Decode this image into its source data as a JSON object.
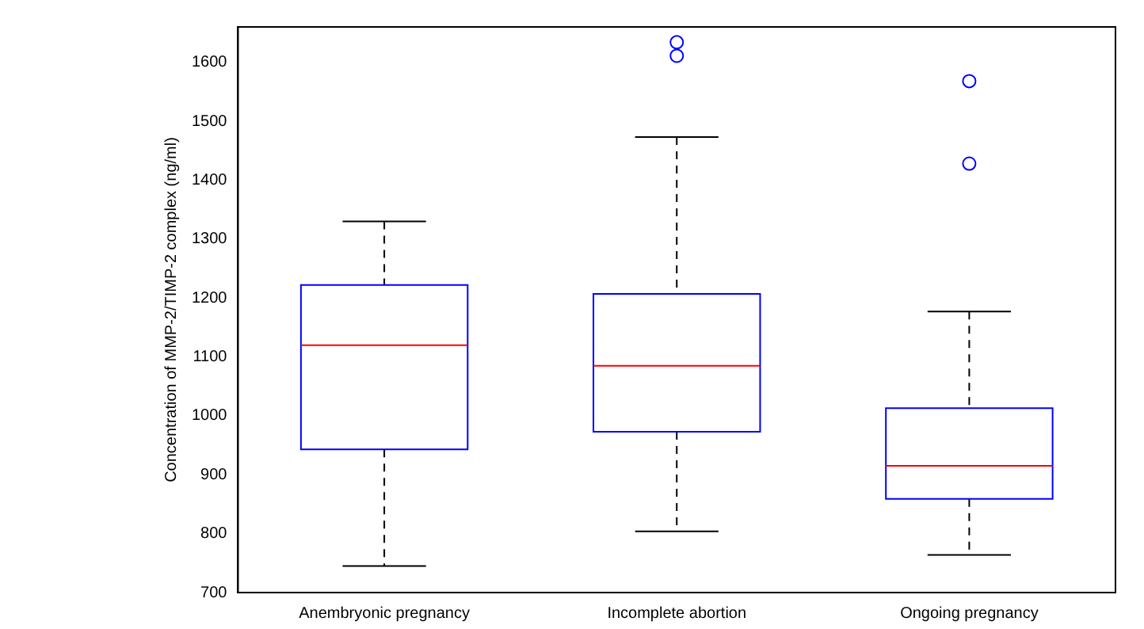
{
  "chart_data": {
    "type": "box",
    "ylabel": "Concentration of MMP-2/TIMP-2 complex (ng/ml)",
    "categories": [
      "Anembryonic pregnancy",
      "Incomplete abortion",
      "Ongoing pregnancy"
    ],
    "color": "#0000ff",
    "marker": "circle",
    "boxes": [
      {
        "low": 745,
        "q1": 943,
        "median": 1120,
        "q3": 1222,
        "high": 1330
      },
      {
        "low": 804,
        "q1": 973,
        "median": 1085,
        "q3": 1207,
        "high": 1473,
        "outliers": [
          1611,
          1634
        ]
      },
      {
        "low": 764,
        "q1": 859,
        "median": 915,
        "q3": 1013,
        "high": 1177,
        "outliers": [
          1428,
          1568
        ]
      }
    ],
    "ylim": [
      700,
      1660
    ],
    "yticks": [
      700,
      800,
      900,
      1000,
      1100,
      1200,
      1300,
      1400,
      1500,
      1600
    ],
    "grid": false
  }
}
